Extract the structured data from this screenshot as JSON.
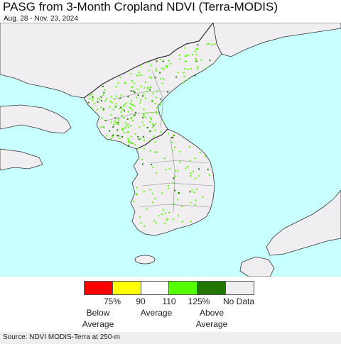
{
  "header": {
    "title": "PASG from 3-Month Cropland NDVI (Terra-MODIS)",
    "date_range": "Aug. 28 - Nov. 23, 2024"
  },
  "map": {
    "colors": {
      "sea": "#c8ffff",
      "land_no_data": "#f0eef0",
      "border": "#333333",
      "province_line": "#888888"
    }
  },
  "legend": {
    "swatches": [
      {
        "color": "#ff0000"
      },
      {
        "color": "#ffff00"
      },
      {
        "color": "#ffffff"
      },
      {
        "color": "#55ff00"
      },
      {
        "color": "#227700"
      },
      {
        "color": "#f0eef0"
      }
    ],
    "ticks": [
      "75%",
      "90",
      "110",
      "125%"
    ],
    "below_label": [
      "Below",
      "Average"
    ],
    "average_label": "Average",
    "above_label": [
      "Above",
      "Average"
    ],
    "no_data_label": "No Data"
  },
  "footer": {
    "source": "Source: NDVI MODIS-Terra at 250-m"
  }
}
